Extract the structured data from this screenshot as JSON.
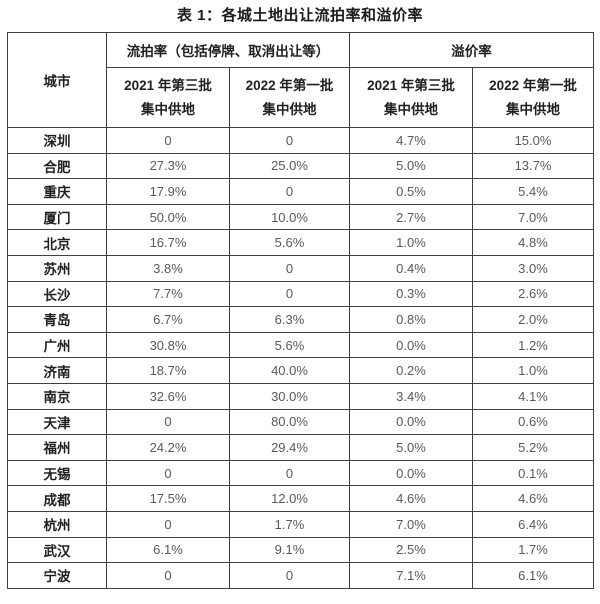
{
  "title": "表 1：各城土地出让流拍率和溢价率",
  "table": {
    "city_header": "城市",
    "group_headers": [
      "流拍率（包括停牌、取消出让等）",
      "溢价率"
    ],
    "sub_headers": [
      {
        "line1": "2021 年第三批",
        "line2": "集中供地"
      },
      {
        "line1": "2022 年第一批",
        "line2": "集中供地"
      },
      {
        "line1": "2021 年第三批",
        "line2": "集中供地"
      },
      {
        "line1": "2022 年第一批",
        "line2": "集中供地"
      }
    ],
    "rows": [
      {
        "city": "深圳",
        "values": [
          "0",
          "0",
          "4.7%",
          "15.0%"
        ]
      },
      {
        "city": "合肥",
        "values": [
          "27.3%",
          "25.0%",
          "5.0%",
          "13.7%"
        ]
      },
      {
        "city": "重庆",
        "values": [
          "17.9%",
          "0",
          "0.5%",
          "5.4%"
        ]
      },
      {
        "city": "厦门",
        "values": [
          "50.0%",
          "10.0%",
          "2.7%",
          "7.0%"
        ]
      },
      {
        "city": "北京",
        "values": [
          "16.7%",
          "5.6%",
          "1.0%",
          "4.8%"
        ]
      },
      {
        "city": "苏州",
        "values": [
          "3.8%",
          "0",
          "0.4%",
          "3.0%"
        ]
      },
      {
        "city": "长沙",
        "values": [
          "7.7%",
          "0",
          "0.3%",
          "2.6%"
        ]
      },
      {
        "city": "青岛",
        "values": [
          "6.7%",
          "6.3%",
          "0.8%",
          "2.0%"
        ]
      },
      {
        "city": "广州",
        "values": [
          "30.8%",
          "5.6%",
          "0.0%",
          "1.2%"
        ]
      },
      {
        "city": "济南",
        "values": [
          "18.7%",
          "40.0%",
          "0.2%",
          "1.0%"
        ]
      },
      {
        "city": "南京",
        "values": [
          "32.6%",
          "30.0%",
          "3.4%",
          "4.1%"
        ]
      },
      {
        "city": "天津",
        "values": [
          "0",
          "80.0%",
          "0.0%",
          "0.6%"
        ]
      },
      {
        "city": "福州",
        "values": [
          "24.2%",
          "29.4%",
          "5.0%",
          "5.2%"
        ]
      },
      {
        "city": "无锡",
        "values": [
          "0",
          "0",
          "0.0%",
          "0.1%"
        ]
      },
      {
        "city": "成都",
        "values": [
          "17.5%",
          "12.0%",
          "4.6%",
          "4.6%"
        ]
      },
      {
        "city": "杭州",
        "values": [
          "0",
          "1.7%",
          "7.0%",
          "6.4%"
        ]
      },
      {
        "city": "武汉",
        "values": [
          "6.1%",
          "9.1%",
          "2.5%",
          "1.7%"
        ]
      },
      {
        "city": "宁波",
        "values": [
          "0",
          "0",
          "7.1%",
          "6.1%"
        ]
      }
    ]
  },
  "chart_data": {
    "type": "table",
    "title": "表 1：各城土地出让流拍率和溢价率",
    "columns": [
      "城市",
      "流拍率 2021年第三批集中供地",
      "流拍率 2022年第一批集中供地",
      "溢价率 2021年第三批集中供地",
      "溢价率 2022年第一批集中供地"
    ],
    "rows": [
      [
        "深圳",
        "0",
        "0",
        "4.7%",
        "15.0%"
      ],
      [
        "合肥",
        "27.3%",
        "25.0%",
        "5.0%",
        "13.7%"
      ],
      [
        "重庆",
        "17.9%",
        "0",
        "0.5%",
        "5.4%"
      ],
      [
        "厦门",
        "50.0%",
        "10.0%",
        "2.7%",
        "7.0%"
      ],
      [
        "北京",
        "16.7%",
        "5.6%",
        "1.0%",
        "4.8%"
      ],
      [
        "苏州",
        "3.8%",
        "0",
        "0.4%",
        "3.0%"
      ],
      [
        "长沙",
        "7.7%",
        "0",
        "0.3%",
        "2.6%"
      ],
      [
        "青岛",
        "6.7%",
        "6.3%",
        "0.8%",
        "2.0%"
      ],
      [
        "广州",
        "30.8%",
        "5.6%",
        "0.0%",
        "1.2%"
      ],
      [
        "济南",
        "18.7%",
        "40.0%",
        "0.2%",
        "1.0%"
      ],
      [
        "南京",
        "32.6%",
        "30.0%",
        "3.4%",
        "4.1%"
      ],
      [
        "天津",
        "0",
        "80.0%",
        "0.0%",
        "0.6%"
      ],
      [
        "福州",
        "24.2%",
        "29.4%",
        "5.0%",
        "5.2%"
      ],
      [
        "无锡",
        "0",
        "0",
        "0.0%",
        "0.1%"
      ],
      [
        "成都",
        "17.5%",
        "12.0%",
        "4.6%",
        "4.6%"
      ],
      [
        "杭州",
        "0",
        "1.7%",
        "7.0%",
        "6.4%"
      ],
      [
        "武汉",
        "6.1%",
        "9.1%",
        "2.5%",
        "1.7%"
      ],
      [
        "宁波",
        "0",
        "0",
        "7.1%",
        "6.1%"
      ]
    ],
    "colors": {
      "border": "#404040",
      "header_text": "#1f1f1f",
      "value_text": "#595959",
      "background": "#ffffff"
    }
  }
}
